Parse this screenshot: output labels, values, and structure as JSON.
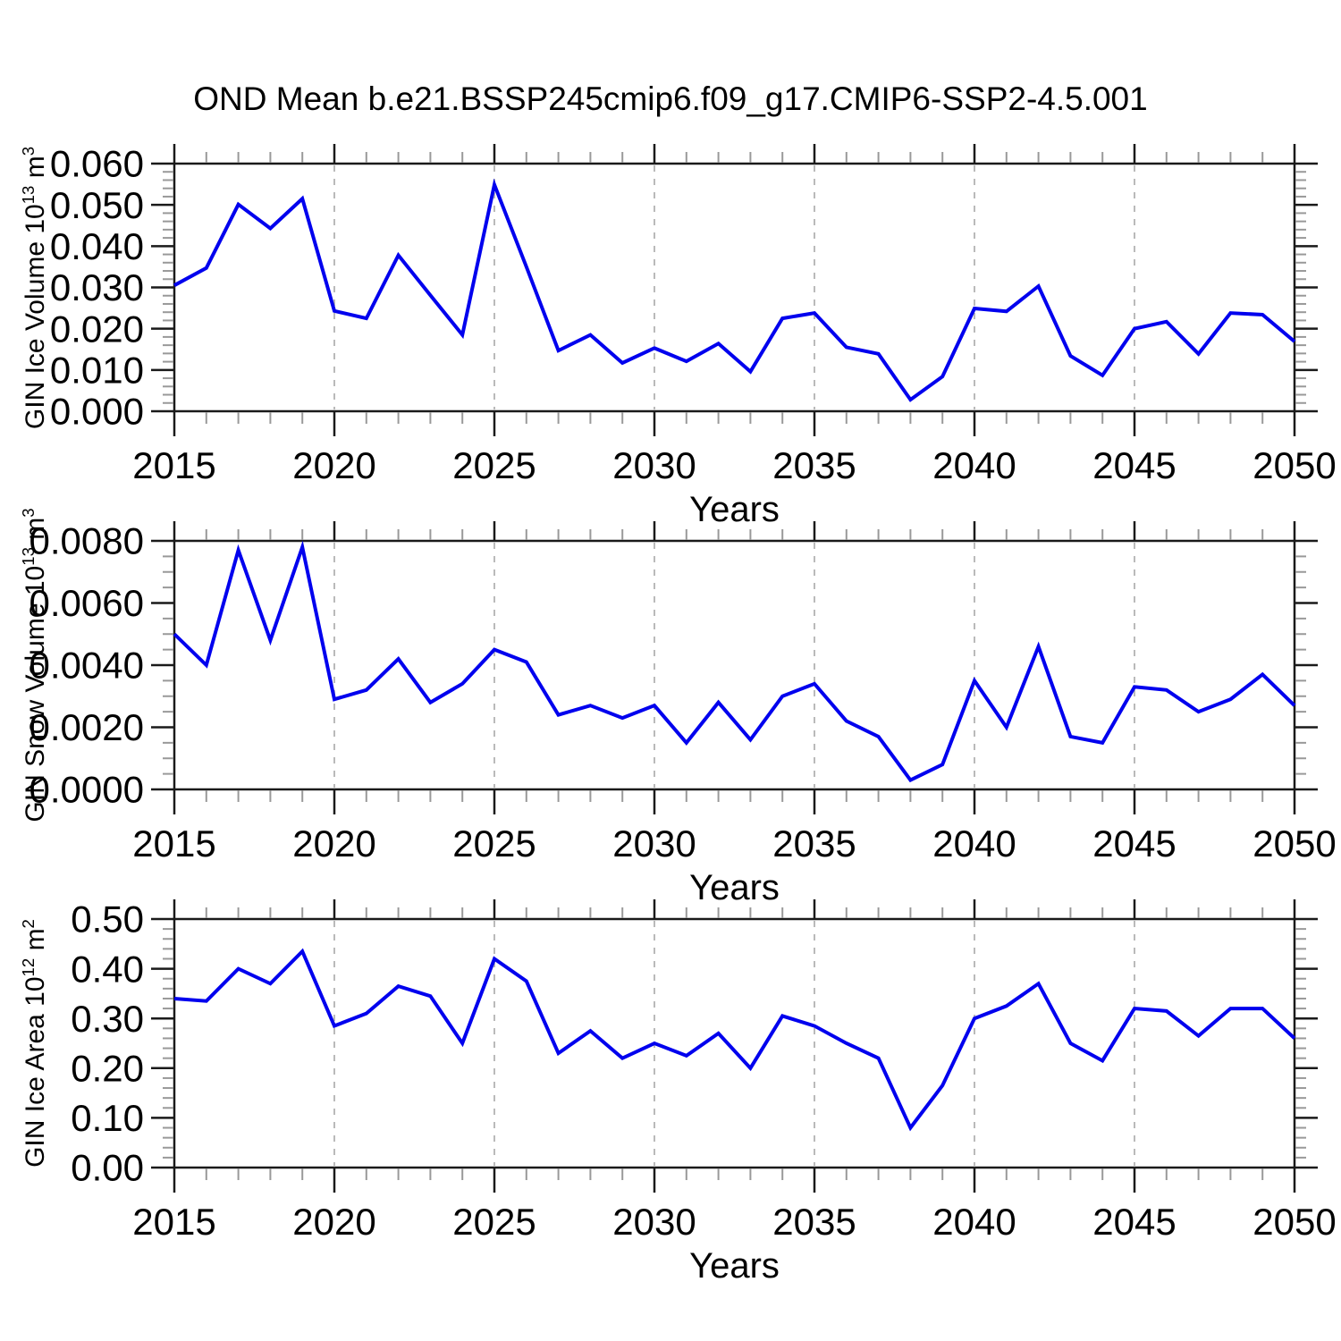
{
  "title": "OND Mean b.e21.BSSP245cmip6.f09_g17.CMIP6-SSP2-4.5.001",
  "colors": {
    "line": "#0000ee",
    "axis": "#1a1a1a",
    "grid": "#b3b3b3",
    "minor_tick": "#999999",
    "text": "#000000",
    "background": "#ffffff"
  },
  "panels_common": {
    "x_axis_label": "Years",
    "x_range": [
      2015,
      2050
    ],
    "x_major_step": 5,
    "x_minor_step": 1,
    "x_tick_labels": [
      "2015",
      "2020",
      "2025",
      "2030",
      "2035",
      "2040",
      "2045",
      "2050"
    ],
    "grid_years": [
      2020,
      2025,
      2030,
      2035,
      2040,
      2045
    ],
    "years": [
      2015,
      2016,
      2017,
      2018,
      2019,
      2020,
      2021,
      2022,
      2023,
      2024,
      2025,
      2026,
      2027,
      2028,
      2029,
      2030,
      2031,
      2032,
      2033,
      2034,
      2035,
      2036,
      2037,
      2038,
      2039,
      2040,
      2041,
      2042,
      2043,
      2044,
      2045,
      2046,
      2047,
      2048,
      2049,
      2050
    ]
  },
  "chart_data": [
    {
      "type": "line",
      "id": "gin-ice-volume",
      "ylabel_text": "GIN Ice Volume 10^13 m^3",
      "ylabel_parts": {
        "text1": "GIN Ice Volume 10",
        "sup1": "13",
        "text2": " m",
        "sup2": "3"
      },
      "xlabel": "Years",
      "ylim": [
        0.0,
        0.06
      ],
      "ytick_labels": [
        "0.000",
        "0.010",
        "0.020",
        "0.030",
        "0.040",
        "0.050",
        "0.060"
      ],
      "yminor_step": 0.002,
      "grid": "dashed-vertical",
      "values": [
        0.0305,
        0.0347,
        0.0501,
        0.0443,
        0.0515,
        0.0243,
        0.0225,
        0.0378,
        0.0281,
        0.0185,
        0.0549,
        0.035,
        0.0147,
        0.0185,
        0.0117,
        0.0153,
        0.0121,
        0.0164,
        0.0096,
        0.0225,
        0.0238,
        0.0155,
        0.0139,
        0.0028,
        0.0084,
        0.0249,
        0.0242,
        0.0303,
        0.0134,
        0.0087,
        0.02,
        0.0217,
        0.0139,
        0.0238,
        0.0234,
        0.0169
      ]
    },
    {
      "type": "line",
      "id": "gin-snow-volume",
      "ylabel_text": "GIN Snow Volume 10^13 m^3",
      "ylabel_parts": {
        "text1": "GIN Snow Volume 10",
        "sup1": "13",
        "text2": " m",
        "sup2": "3"
      },
      "xlabel": "Years",
      "ylim": [
        0.0,
        0.008
      ],
      "ytick_labels": [
        "0.0000",
        "0.0020",
        "0.0040",
        "0.0060",
        "0.0080"
      ],
      "yminor_step": 0.0005,
      "grid": "dashed-vertical",
      "values": [
        0.005,
        0.004,
        0.0077,
        0.0048,
        0.0078,
        0.0029,
        0.0032,
        0.0042,
        0.0028,
        0.0034,
        0.0045,
        0.0041,
        0.0024,
        0.0027,
        0.0023,
        0.0027,
        0.0015,
        0.0028,
        0.0016,
        0.003,
        0.0034,
        0.0022,
        0.0017,
        0.0003,
        0.0008,
        0.0035,
        0.002,
        0.0046,
        0.0017,
        0.0015,
        0.0033,
        0.0032,
        0.0025,
        0.0029,
        0.0037,
        0.0027
      ]
    },
    {
      "type": "line",
      "id": "gin-ice-area",
      "ylabel_text": "GIN Ice Area 10^12 m^2",
      "ylabel_parts": {
        "text1": "GIN Ice Area 10",
        "sup1": "12",
        "text2": " m",
        "sup2": "2"
      },
      "xlabel": "Years",
      "ylim": [
        0.0,
        0.5
      ],
      "ytick_labels": [
        "0.00",
        "0.10",
        "0.20",
        "0.30",
        "0.40",
        "0.50"
      ],
      "yminor_step": 0.02,
      "grid": "dashed-vertical",
      "values": [
        0.34,
        0.335,
        0.4,
        0.37,
        0.435,
        0.285,
        0.31,
        0.365,
        0.345,
        0.25,
        0.42,
        0.375,
        0.23,
        0.275,
        0.22,
        0.25,
        0.225,
        0.27,
        0.2,
        0.305,
        0.285,
        0.25,
        0.22,
        0.08,
        0.165,
        0.3,
        0.325,
        0.37,
        0.25,
        0.215,
        0.32,
        0.315,
        0.265,
        0.32,
        0.32,
        0.26
      ]
    }
  ]
}
